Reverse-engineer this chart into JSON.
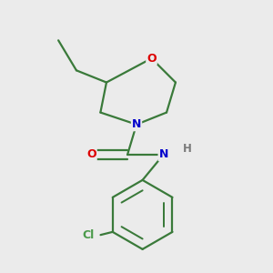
{
  "background_color": "#ebebeb",
  "bond_color": "#3a7a3a",
  "atom_colors": {
    "O": "#dd0000",
    "N": "#0000cc",
    "Cl": "#4a9a4a",
    "H": "#7a7a7a"
  },
  "linewidth": 1.6,
  "figsize": [
    3.0,
    3.0
  ],
  "dpi": 100
}
